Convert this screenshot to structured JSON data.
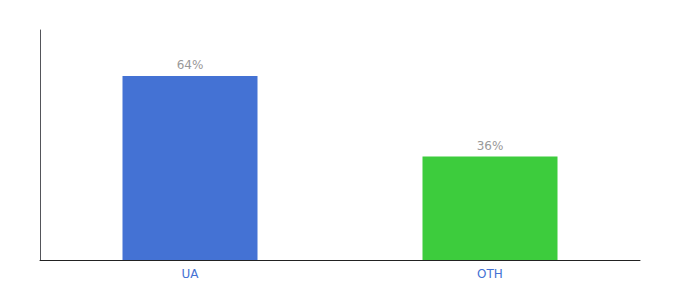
{
  "chart_data": {
    "type": "bar",
    "categories": [
      "UA",
      "OTH"
    ],
    "values": [
      64,
      36
    ],
    "value_labels": [
      "64%",
      "36%"
    ],
    "colors": [
      "#4472d4",
      "#3dcc3d"
    ],
    "ylim": [
      0,
      80
    ],
    "yticks": [],
    "tick_labels": "x",
    "data_labels": true,
    "grid": false
  }
}
